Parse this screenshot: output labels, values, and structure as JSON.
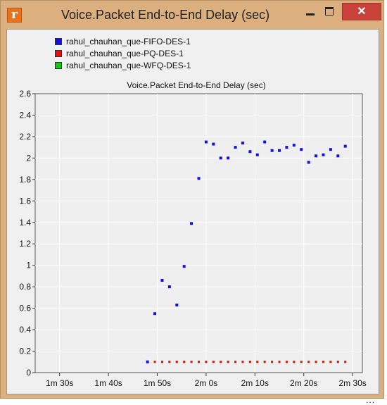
{
  "window": {
    "title": "Voice.Packet End-to-End Delay (sec)",
    "icon": "r",
    "close_symbol": "✕"
  },
  "legend": [
    {
      "label": "rahul_chauhan_que-FIFO-DES-1",
      "color": "#1010e0"
    },
    {
      "label": "rahul_chauhan_que-PQ-DES-1",
      "color": "#e01010"
    },
    {
      "label": "rahul_chauhan_que-WFQ-DES-1",
      "color": "#10c810"
    }
  ],
  "more_indicator": "...",
  "chart_data": {
    "type": "scatter",
    "title": "Voice.Packet End-to-End Delay (sec)",
    "xlabel": "",
    "ylabel": "",
    "xlim_seconds": [
      85,
      152
    ],
    "ylim": [
      0,
      2.6
    ],
    "y_ticks": [
      "0",
      "0.2",
      "0.4",
      "0.6",
      "0.8",
      "1",
      "1.2",
      "1.4",
      "1.6",
      "1.8",
      "2",
      "2.2",
      "2.4",
      "2.6"
    ],
    "y_tick_values": [
      0,
      0.2,
      0.4,
      0.6,
      0.8,
      1,
      1.2,
      1.4,
      1.6,
      1.8,
      2,
      2.2,
      2.4,
      2.6
    ],
    "x_ticks": [
      "1m 30s",
      "1m 40s",
      "1m 50s",
      "2m 0s",
      "2m 10s",
      "2m 20s",
      "2m 30s"
    ],
    "x_tick_seconds": [
      90,
      100,
      110,
      120,
      130,
      140,
      150
    ],
    "grid": true,
    "series": [
      {
        "name": "rahul_chauhan_que-FIFO-DES-1",
        "color": "#1010e0",
        "x_seconds": [
          108,
          109.5,
          111,
          112.5,
          114,
          115.5,
          117,
          118.5,
          120,
          121.5,
          123,
          124.5,
          126,
          127.5,
          129,
          130.5,
          132,
          133.5,
          135,
          136.5,
          138,
          139.5,
          141,
          142.5,
          144,
          145.5,
          147,
          148.5
        ],
        "values": [
          0.1,
          0.55,
          0.86,
          0.8,
          0.63,
          0.99,
          1.39,
          1.81,
          2.15,
          2.13,
          2.0,
          2.0,
          2.1,
          2.14,
          2.06,
          2.03,
          2.15,
          2.07,
          2.07,
          2.1,
          2.12,
          2.08,
          1.96,
          2.02,
          2.03,
          2.08,
          2.02,
          2.11
        ]
      },
      {
        "name": "rahul_chauhan_que-PQ-DES-1",
        "color": "#e01010",
        "x_seconds": [
          109.5,
          111,
          112.5,
          114,
          115.5,
          117,
          118.5,
          120,
          121.5,
          123,
          124.5,
          126,
          127.5,
          129,
          130.5,
          132,
          133.5,
          135,
          136.5,
          138,
          139.5,
          141,
          142.5,
          144,
          145.5,
          147,
          148.5
        ],
        "values": [
          0.1,
          0.1,
          0.1,
          0.1,
          0.1,
          0.1,
          0.1,
          0.1,
          0.1,
          0.1,
          0.1,
          0.1,
          0.1,
          0.1,
          0.1,
          0.1,
          0.1,
          0.1,
          0.1,
          0.1,
          0.1,
          0.1,
          0.1,
          0.1,
          0.1,
          0.1,
          0.1
        ]
      },
      {
        "name": "rahul_chauhan_que-WFQ-DES-1",
        "color": "#10c810",
        "x_seconds": [
          109.5,
          111,
          112.5,
          114,
          115.5,
          117,
          118.5,
          120,
          121.5,
          123,
          124.5,
          126,
          127.5,
          129,
          130.5,
          132,
          133.5,
          135,
          136.5,
          138,
          139.5,
          141,
          142.5,
          144,
          145.5,
          147,
          148.5
        ],
        "values": [
          0.1,
          0.1,
          0.1,
          0.1,
          0.1,
          0.1,
          0.1,
          0.1,
          0.1,
          0.1,
          0.1,
          0.1,
          0.1,
          0.1,
          0.1,
          0.1,
          0.1,
          0.1,
          0.1,
          0.1,
          0.1,
          0.1,
          0.1,
          0.1,
          0.1,
          0.1,
          0.1
        ]
      }
    ]
  }
}
